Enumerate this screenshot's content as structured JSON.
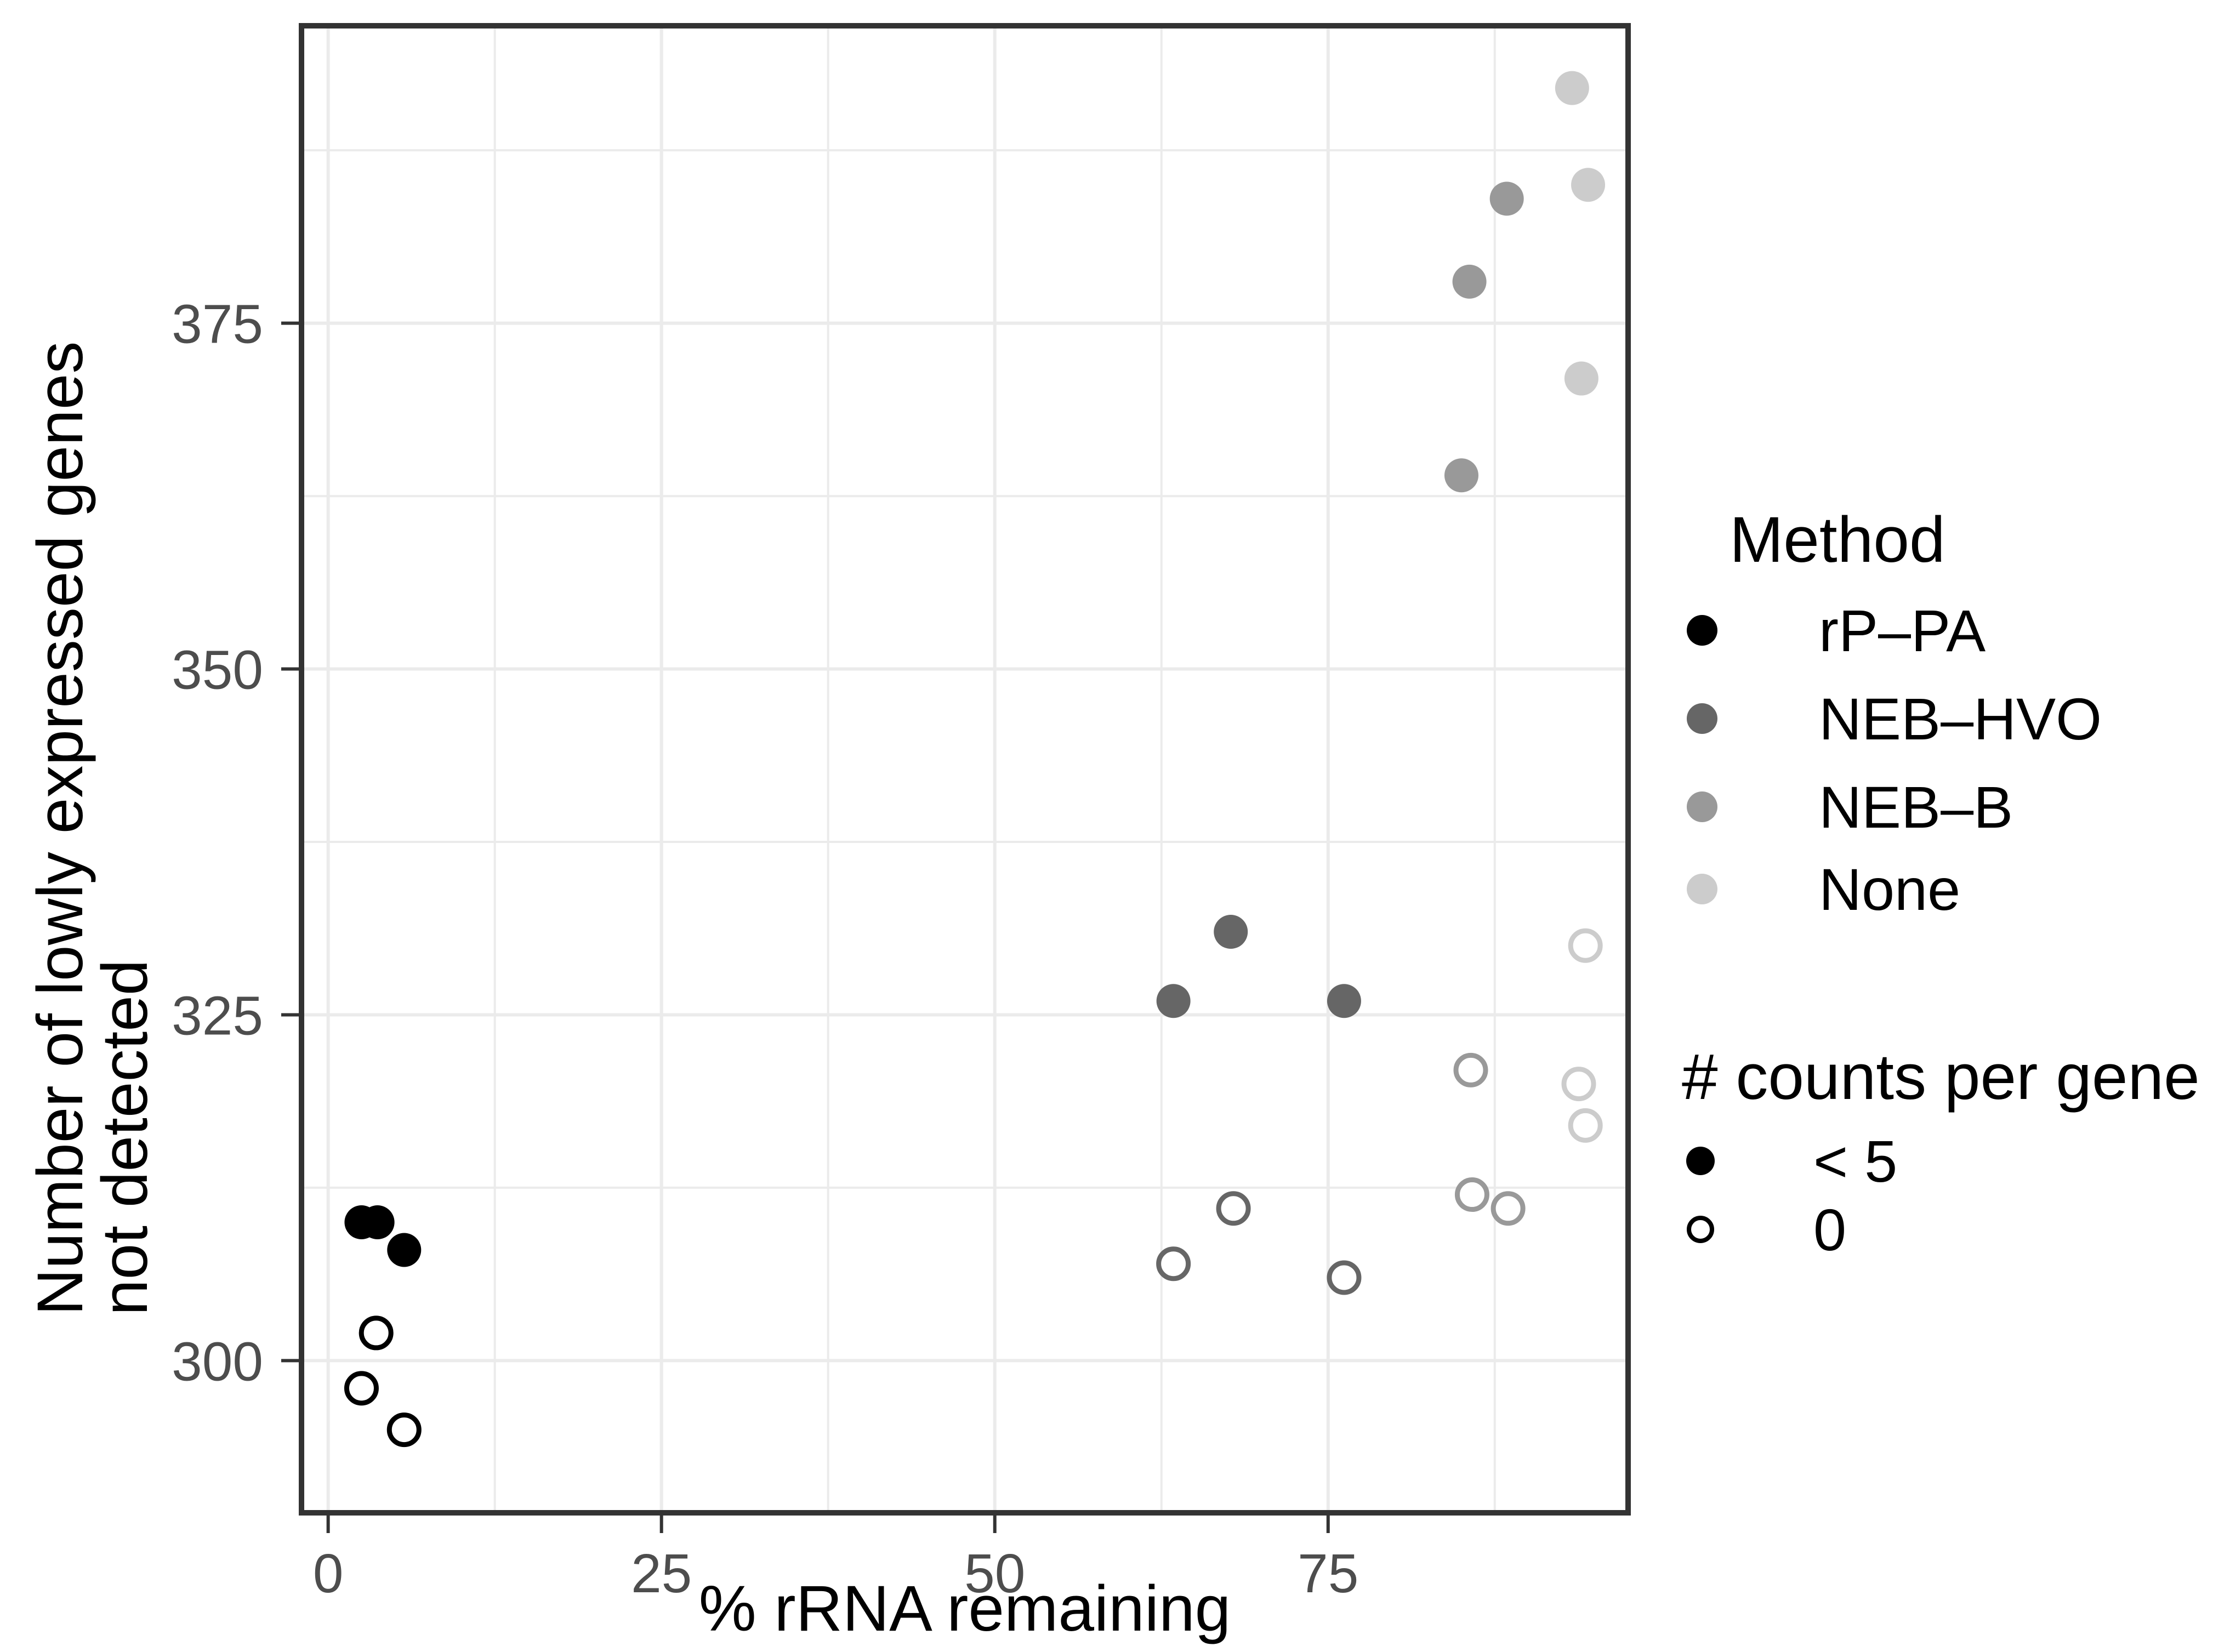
{
  "chart_data": {
    "type": "scatter",
    "title": "",
    "xlabel": "% rRNA remaining",
    "ylabel_lines": [
      "Number of lowly expressed genes",
      "not detected"
    ],
    "x_ticks": [
      0,
      25,
      50,
      75
    ],
    "y_ticks": [
      300,
      325,
      350,
      375
    ],
    "x_minor_ticks": [
      12.5,
      37.5,
      62.5,
      87.5
    ],
    "y_minor_ticks": [
      312.5,
      337.5,
      362.5,
      387.5
    ],
    "xlim": [
      -2,
      97.5
    ],
    "ylim": [
      289,
      396.5
    ],
    "grid": "on",
    "legend_position": "right",
    "colors": {
      "grid": "#EBEBEB",
      "panel_border": "#333333",
      "tick_mark": "#333333",
      "tick_label": "#4D4D4D",
      "title_text": "#000000",
      "background": "#FFFFFF"
    },
    "series": [
      {
        "method": "rP–PA",
        "color": "#000000",
        "points_lt5": [
          [
            2.5,
            310
          ],
          [
            3.7,
            310
          ],
          [
            5.7,
            308
          ]
        ],
        "points_zero": [
          [
            3.6,
            302
          ],
          [
            2.5,
            298
          ],
          [
            5.7,
            295
          ]
        ]
      },
      {
        "method": "NEB–HVO",
        "color": "#666666",
        "points_lt5": [
          [
            63.4,
            326
          ],
          [
            67.7,
            331
          ],
          [
            76.2,
            326
          ]
        ],
        "points_zero": [
          [
            63.4,
            307
          ],
          [
            67.9,
            311
          ],
          [
            76.2,
            306
          ]
        ]
      },
      {
        "method": "NEB–B",
        "color": "#999999",
        "points_lt5": [
          [
            85.0,
            364
          ],
          [
            85.6,
            378
          ],
          [
            88.4,
            384
          ]
        ],
        "points_zero": [
          [
            85.7,
            321
          ],
          [
            85.8,
            312
          ],
          [
            88.5,
            311
          ]
        ]
      },
      {
        "method": "None",
        "color": "#CCCCCC",
        "points_lt5": [
          [
            94.0,
            371
          ],
          [
            94.5,
            385
          ],
          [
            93.3,
            392
          ]
        ],
        "points_zero": [
          [
            94.3,
            330
          ],
          [
            93.8,
            320
          ],
          [
            94.3,
            317
          ]
        ]
      }
    ],
    "legend_method": {
      "title": "Method",
      "items": [
        {
          "label": "rP–PA",
          "color": "#000000"
        },
        {
          "label": "NEB–HVO",
          "color": "#666666"
        },
        {
          "label": "NEB–B",
          "color": "#999999"
        },
        {
          "label": "None",
          "color": "#CCCCCC"
        }
      ]
    },
    "legend_counts": {
      "title": "# counts per gene",
      "items": [
        {
          "label": "< 5",
          "shape": "filled-circle"
        },
        {
          "label": "0",
          "shape": "open-circle"
        }
      ]
    }
  }
}
